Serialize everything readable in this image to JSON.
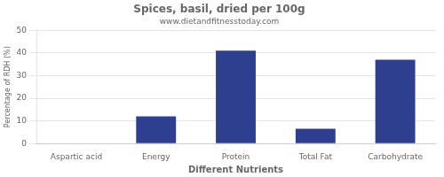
{
  "chart_data": {
    "type": "bar",
    "title": "Spices, basil, dried per 100g",
    "subtitle": "www.dietandfitnesstoday.com",
    "xlabel": "Different Nutrients",
    "ylabel": "Percentage of RDH (%)",
    "categories": [
      "Aspartic acid",
      "Energy",
      "Protein",
      "Total Fat",
      "Carbohydrate"
    ],
    "values": [
      0,
      12,
      41,
      6.5,
      37
    ],
    "color": "#2e3f8f",
    "ylim": [
      0,
      50
    ],
    "yticks": [
      0,
      10,
      20,
      30,
      40,
      50
    ],
    "grid": true
  }
}
